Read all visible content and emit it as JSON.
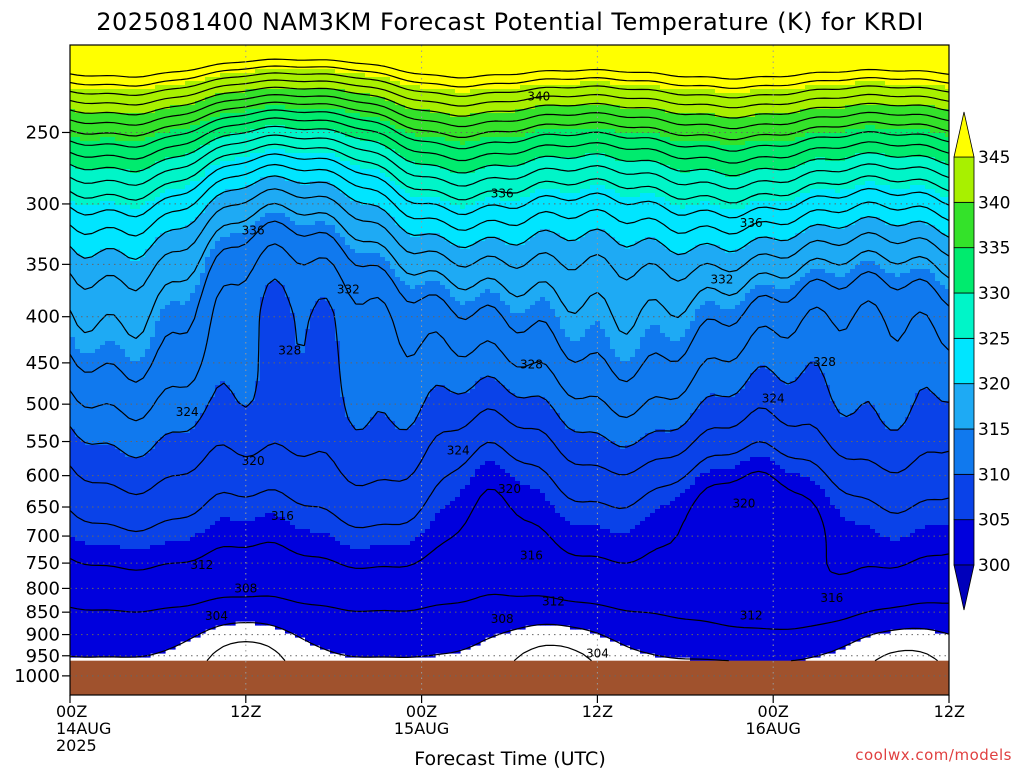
{
  "title": "2025081400 NAM3KM Forecast Potential Temperature (K) for KRDI",
  "xlabel": "Forecast Time (UTC)",
  "credit": "coolwx.com/models",
  "colors": {
    "background": "#ffffff",
    "ground": "#a0522d",
    "contour_line": "#000000",
    "gridline": "#666666"
  },
  "chart_data": {
    "type": "heatmap",
    "title": "2025081400 NAM3KM Forecast Potential Temperature (K) for KRDI",
    "xlabel": "Forecast Time (UTC)",
    "ylabel": "",
    "x_range_hours": [
      0,
      60
    ],
    "x_ticks": [
      {
        "hour": 0,
        "lines": [
          "00Z",
          "14AUG",
          "2025"
        ]
      },
      {
        "hour": 12,
        "lines": [
          "12Z"
        ]
      },
      {
        "hour": 24,
        "lines": [
          "00Z",
          "15AUG"
        ]
      },
      {
        "hour": 36,
        "lines": [
          "12Z"
        ]
      },
      {
        "hour": 48,
        "lines": [
          "00Z",
          "16AUG"
        ]
      },
      {
        "hour": 60,
        "lines": [
          "12Z"
        ]
      }
    ],
    "y_scale": "log-pressure",
    "y_range_hpa": [
      200,
      1050
    ],
    "y_ticks": [
      250,
      300,
      350,
      400,
      450,
      500,
      550,
      600,
      650,
      700,
      750,
      800,
      850,
      900,
      950,
      1000
    ],
    "grid": true,
    "ground_pressure_hpa": 962,
    "colorbar": {
      "levels": [
        300,
        305,
        310,
        315,
        320,
        325,
        330,
        335,
        340,
        345
      ],
      "colors": [
        "#0000dd",
        "#0a42e8",
        "#1079ee",
        "#1eaaf4",
        "#00e5ff",
        "#00f5c8",
        "#00eb6e",
        "#34e22a",
        "#a8f000",
        "#fbfb00"
      ],
      "under_color": "#0000bb",
      "over_color": "#ffff00"
    },
    "contour_interval_K": 2,
    "contour_labels": [
      {
        "value": 340,
        "hour": 32.0,
        "hpa": 228
      },
      {
        "value": 336,
        "hour": 12.5,
        "hpa": 321
      },
      {
        "value": 336,
        "hour": 29.5,
        "hpa": 292
      },
      {
        "value": 336,
        "hour": 46.5,
        "hpa": 315
      },
      {
        "value": 332,
        "hour": 19.0,
        "hpa": 373
      },
      {
        "value": 332,
        "hour": 44.5,
        "hpa": 364
      },
      {
        "value": 328,
        "hour": 15.0,
        "hpa": 436
      },
      {
        "value": 328,
        "hour": 31.5,
        "hpa": 452
      },
      {
        "value": 328,
        "hour": 51.5,
        "hpa": 449
      },
      {
        "value": 324,
        "hour": 8.0,
        "hpa": 510
      },
      {
        "value": 324,
        "hour": 48.0,
        "hpa": 493
      },
      {
        "value": 324,
        "hour": 26.5,
        "hpa": 563
      },
      {
        "value": 320,
        "hour": 12.5,
        "hpa": 578
      },
      {
        "value": 320,
        "hour": 30.0,
        "hpa": 621
      },
      {
        "value": 320,
        "hour": 46.0,
        "hpa": 644
      },
      {
        "value": 316,
        "hour": 14.5,
        "hpa": 665
      },
      {
        "value": 316,
        "hour": 31.5,
        "hpa": 736
      },
      {
        "value": 312,
        "hour": 9.0,
        "hpa": 754
      },
      {
        "value": 312,
        "hour": 33.0,
        "hpa": 827
      },
      {
        "value": 312,
        "hour": 46.5,
        "hpa": 857
      },
      {
        "value": 308,
        "hour": 12.0,
        "hpa": 800
      },
      {
        "value": 308,
        "hour": 29.5,
        "hpa": 865
      },
      {
        "value": 304,
        "hour": 10.0,
        "hpa": 858
      },
      {
        "value": 304,
        "hour": 36.0,
        "hpa": 944
      },
      {
        "value": 316,
        "hour": 52.0,
        "hpa": 820
      }
    ]
  }
}
